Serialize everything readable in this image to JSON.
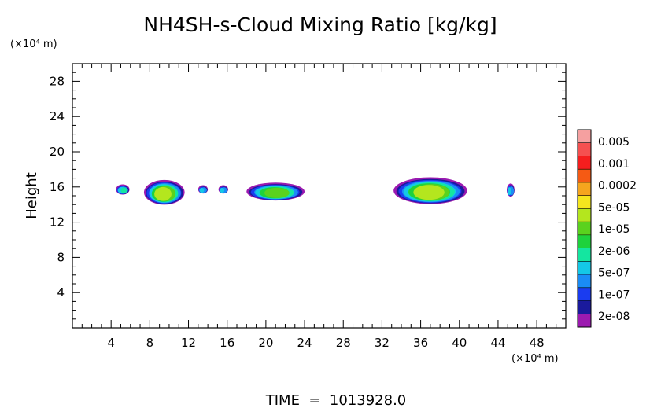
{
  "chart_data": {
    "type": "heatmap",
    "title": "NH4SH-s-Cloud Mixing Ratio [kg/kg]",
    "ylabel": "Height",
    "y_unit": "(×10⁴ m)",
    "x_unit": "(×10⁴ m)",
    "footer": "TIME  =  1013928.0",
    "xlim": [
      0,
      51
    ],
    "ylim": [
      0,
      30
    ],
    "x_ticks": [
      4,
      8,
      12,
      16,
      20,
      24,
      28,
      32,
      36,
      40,
      44,
      48
    ],
    "y_ticks": [
      4,
      8,
      12,
      16,
      20,
      24,
      28
    ],
    "grid": false,
    "colorbar": {
      "labels": [
        "0.005",
        "0.001",
        "0.0002",
        "5e-05",
        "1e-05",
        "2e-06",
        "5e-07",
        "1e-07",
        "2e-08"
      ],
      "colors": [
        "#9c1ab0",
        "#1a1a9c",
        "#1a3cf0",
        "#1a8cf5",
        "#14c8e6",
        "#14e6a0",
        "#1ed23c",
        "#5ad21e",
        "#b4e61e",
        "#f5e61e",
        "#f5a51e",
        "#f55a14",
        "#f51e1e",
        "#f55050",
        "#f5a0a0"
      ]
    },
    "clouds": [
      {
        "x_center": 5.2,
        "x_half_width": 0.7,
        "height_top": 16.3,
        "height_bottom": 15.4,
        "max_level": 5
      },
      {
        "x_center": 9.5,
        "x_half_width": 2.1,
        "height_top": 16.8,
        "height_bottom": 14.4,
        "max_level": 8
      },
      {
        "x_center": 13.5,
        "x_half_width": 0.5,
        "height_top": 16.2,
        "height_bottom": 15.5,
        "max_level": 4
      },
      {
        "x_center": 15.6,
        "x_half_width": 0.5,
        "height_top": 16.2,
        "height_bottom": 15.5,
        "max_level": 4
      },
      {
        "x_center": 21.0,
        "x_half_width": 3.0,
        "height_top": 16.5,
        "height_bottom": 14.8,
        "max_level": 7
      },
      {
        "x_center": 37.0,
        "x_half_width": 3.8,
        "height_top": 17.1,
        "height_bottom": 14.5,
        "max_level": 8
      },
      {
        "x_center": 45.3,
        "x_half_width": 0.4,
        "height_top": 16.4,
        "height_bottom": 15.2,
        "max_level": 4
      }
    ]
  }
}
